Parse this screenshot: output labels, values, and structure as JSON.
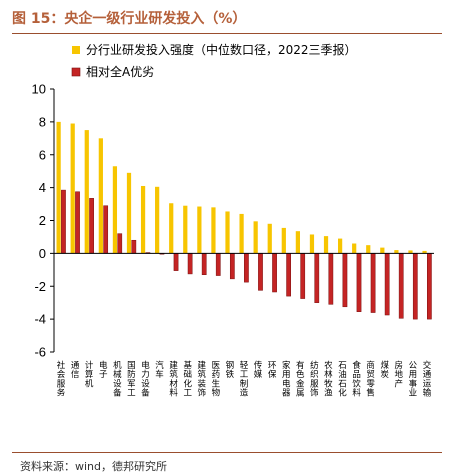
{
  "header": {
    "title": "图 15：央企一级行业研发投入（%）"
  },
  "footer": {
    "source": "资料来源：wind，德邦研究所"
  },
  "colors": {
    "series1": "#F7C500",
    "series2": "#C42424",
    "series2_edge": "#7A1010",
    "title": "#B5603A",
    "rule": "#9A4E2E"
  },
  "chart_data": {
    "type": "bar",
    "title": "",
    "xlabel": "",
    "ylabel": "",
    "ylim": [
      -6,
      10
    ],
    "yticks": [
      -6,
      -4,
      -2,
      0,
      2,
      4,
      6,
      8,
      10
    ],
    "grid": false,
    "legend": "top-left",
    "categories": [
      "社会服务",
      "通信",
      "计算机",
      "电子",
      "机械设备",
      "国防军工",
      "电力设备",
      "汽车",
      "建筑材料",
      "基础化工",
      "建筑装饰",
      "医药生物",
      "钢铁",
      "轻工制造",
      "传媒",
      "环保",
      "家用电器",
      "有色金属",
      "纺织服饰",
      "农林牧渔",
      "石油石化",
      "食品饮料",
      "商贸零售",
      "煤炭",
      "房地产",
      "公用事业",
      "交通运输"
    ],
    "series": [
      {
        "name": "分行业研发投入强度（中位数口径，2022三季报）",
        "values": [
          8.0,
          7.9,
          7.5,
          7.0,
          5.3,
          4.9,
          4.1,
          4.05,
          3.05,
          2.9,
          2.85,
          2.8,
          2.55,
          2.4,
          1.95,
          1.8,
          1.55,
          1.35,
          1.15,
          1.05,
          0.9,
          0.6,
          0.5,
          0.35,
          0.2,
          0.18,
          0.15
        ]
      },
      {
        "name": "相对全A优劣",
        "values": [
          3.85,
          3.75,
          3.35,
          2.9,
          1.2,
          0.8,
          0.05,
          -0.05,
          -1.05,
          -1.25,
          -1.3,
          -1.35,
          -1.55,
          -1.75,
          -2.25,
          -2.35,
          -2.6,
          -2.75,
          -3.0,
          -3.1,
          -3.25,
          -3.55,
          -3.6,
          -3.75,
          -3.95,
          -4.0,
          -4.0
        ]
      }
    ]
  }
}
